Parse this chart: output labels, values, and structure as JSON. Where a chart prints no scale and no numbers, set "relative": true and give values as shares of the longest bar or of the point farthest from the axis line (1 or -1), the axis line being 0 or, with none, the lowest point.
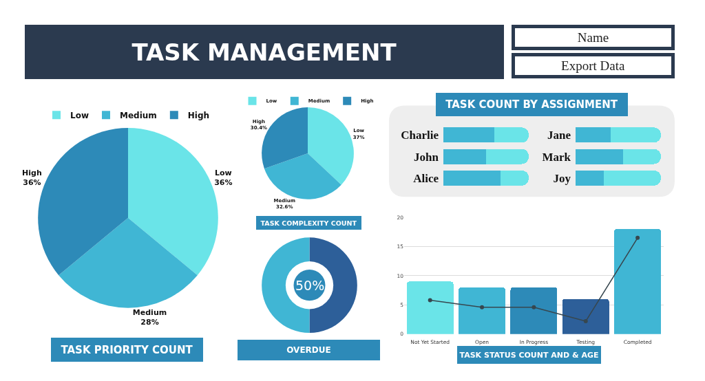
{
  "chart_data": [
    {
      "type": "other",
      "title": "TASK MANAGEMENT",
      "annotations": [
        "Name",
        "Export Data"
      ]
    },
    {
      "type": "pie",
      "title": "TASK PRIORITY COUNT",
      "categories": [
        "Low",
        "Medium",
        "High"
      ],
      "values": [
        36,
        28,
        36
      ],
      "colors": [
        "#6ae4e8",
        "#40b6d4",
        "#2d8ab8"
      ],
      "value_labels": [
        "36%",
        "28%",
        "36%"
      ],
      "legend": "top"
    },
    {
      "type": "pie",
      "title": "TASK COMPLEXITY COUNT",
      "categories": [
        "Low",
        "Medium",
        "High"
      ],
      "values": [
        37,
        32.6,
        30.4
      ],
      "colors": [
        "#6ae4e8",
        "#40b6d4",
        "#2d8ab8"
      ],
      "value_labels": [
        "37%",
        "32.6%",
        "30.4%"
      ],
      "legend": "top"
    },
    {
      "type": "bar",
      "title": "TASK COUNT BY ASSIGNMENT",
      "orientation": "horizontal",
      "stacked": true,
      "relative": true,
      "categories": [
        "Charlie",
        "John",
        "Alice"
      ],
      "series": [
        {
          "color": "#40b6d4",
          "values": [
            0.6,
            0.5,
            0.67
          ]
        },
        {
          "color": "#6ae4e8",
          "values": [
            0.4,
            0.5,
            0.33
          ]
        }
      ]
    },
    {
      "type": "bar",
      "orientation": "horizontal",
      "stacked": true,
      "relative": true,
      "categories": [
        "Jane",
        "Mark",
        "Joy"
      ],
      "series": [
        {
          "color": "#40b6d4",
          "values": [
            0.41,
            0.56,
            0.33
          ]
        },
        {
          "color": "#6ae4e8",
          "values": [
            0.59,
            0.44,
            0.67
          ]
        }
      ]
    },
    {
      "type": "donut",
      "title": "OVERDUE",
      "categories": [
        null,
        null
      ],
      "values": [
        50,
        50
      ],
      "colors": [
        "#2d5f99",
        "#40b6d4"
      ],
      "annotations": [
        "50%"
      ]
    },
    {
      "type": "bar",
      "title": "TASK STATUS COUNT AND & AGE",
      "categories": [
        "Not Yet Started",
        "Open",
        "In Progress",
        "Testing",
        "Completed"
      ],
      "series": [
        {
          "type": "bar",
          "colors": [
            "#6ae4e8",
            "#40b6d4",
            "#2d8ab8",
            "#2d5f99",
            "#40b6d4"
          ],
          "values": [
            9,
            8,
            8,
            6,
            18
          ]
        },
        {
          "type": "line",
          "color": "#37474f",
          "values": [
            5.8,
            4.6,
            4.6,
            2.2,
            16.5
          ]
        }
      ],
      "ylim": [
        0,
        20
      ],
      "yticks": [
        0,
        5,
        10,
        15,
        20
      ],
      "grid": "y",
      "marker": "circle"
    }
  ]
}
